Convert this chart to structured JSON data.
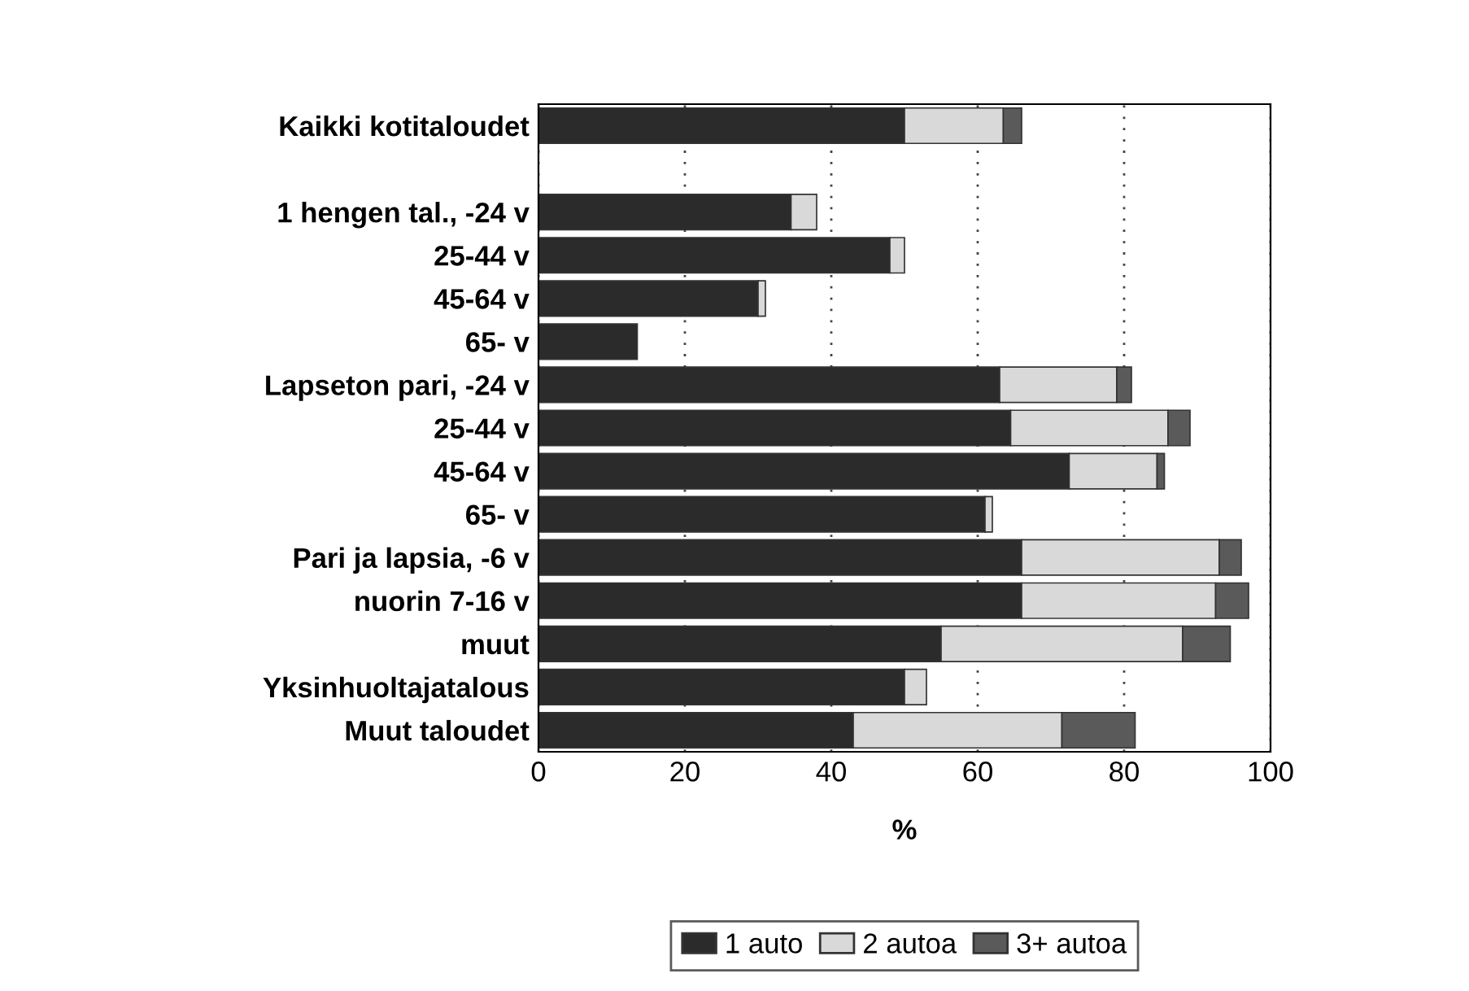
{
  "chart_data": {
    "type": "bar",
    "orientation": "horizontal",
    "stacked": true,
    "xlabel": "%",
    "categories": [
      "Kaikki kotitaloudet",
      null,
      "1 hengen tal., -24 v",
      "25-44 v",
      "45-64 v",
      "65- v",
      "Lapseton pari, -24 v",
      "25-44 v",
      "45-64 v",
      "65- v",
      "Pari ja lapsia, -6 v",
      "nuorin 7-16 v",
      "muut",
      "Yksinhuoltajatalous",
      "Muut taloudet"
    ],
    "series": [
      {
        "name": "1 auto",
        "color": "#2b2b2b",
        "values": [
          50,
          null,
          34.5,
          48,
          30,
          13.5,
          63,
          64.5,
          72.5,
          61,
          66,
          66,
          55,
          50,
          43
        ]
      },
      {
        "name": "2 autoa",
        "color": "#d9d9d9",
        "values": [
          13.5,
          null,
          3.5,
          2,
          1,
          null,
          16,
          21.5,
          12,
          1,
          27,
          26.5,
          33,
          3,
          28.5
        ]
      },
      {
        "name": "3+ autoa",
        "color": "#5a5a5a",
        "values": [
          2.5,
          null,
          null,
          null,
          null,
          null,
          2,
          3,
          1,
          null,
          3,
          4.5,
          6.5,
          null,
          10
        ]
      }
    ],
    "xlim": [
      0,
      100
    ],
    "xticks": [
      0,
      20,
      40,
      60,
      80,
      100
    ],
    "grid": "x",
    "legend": "bottom"
  }
}
